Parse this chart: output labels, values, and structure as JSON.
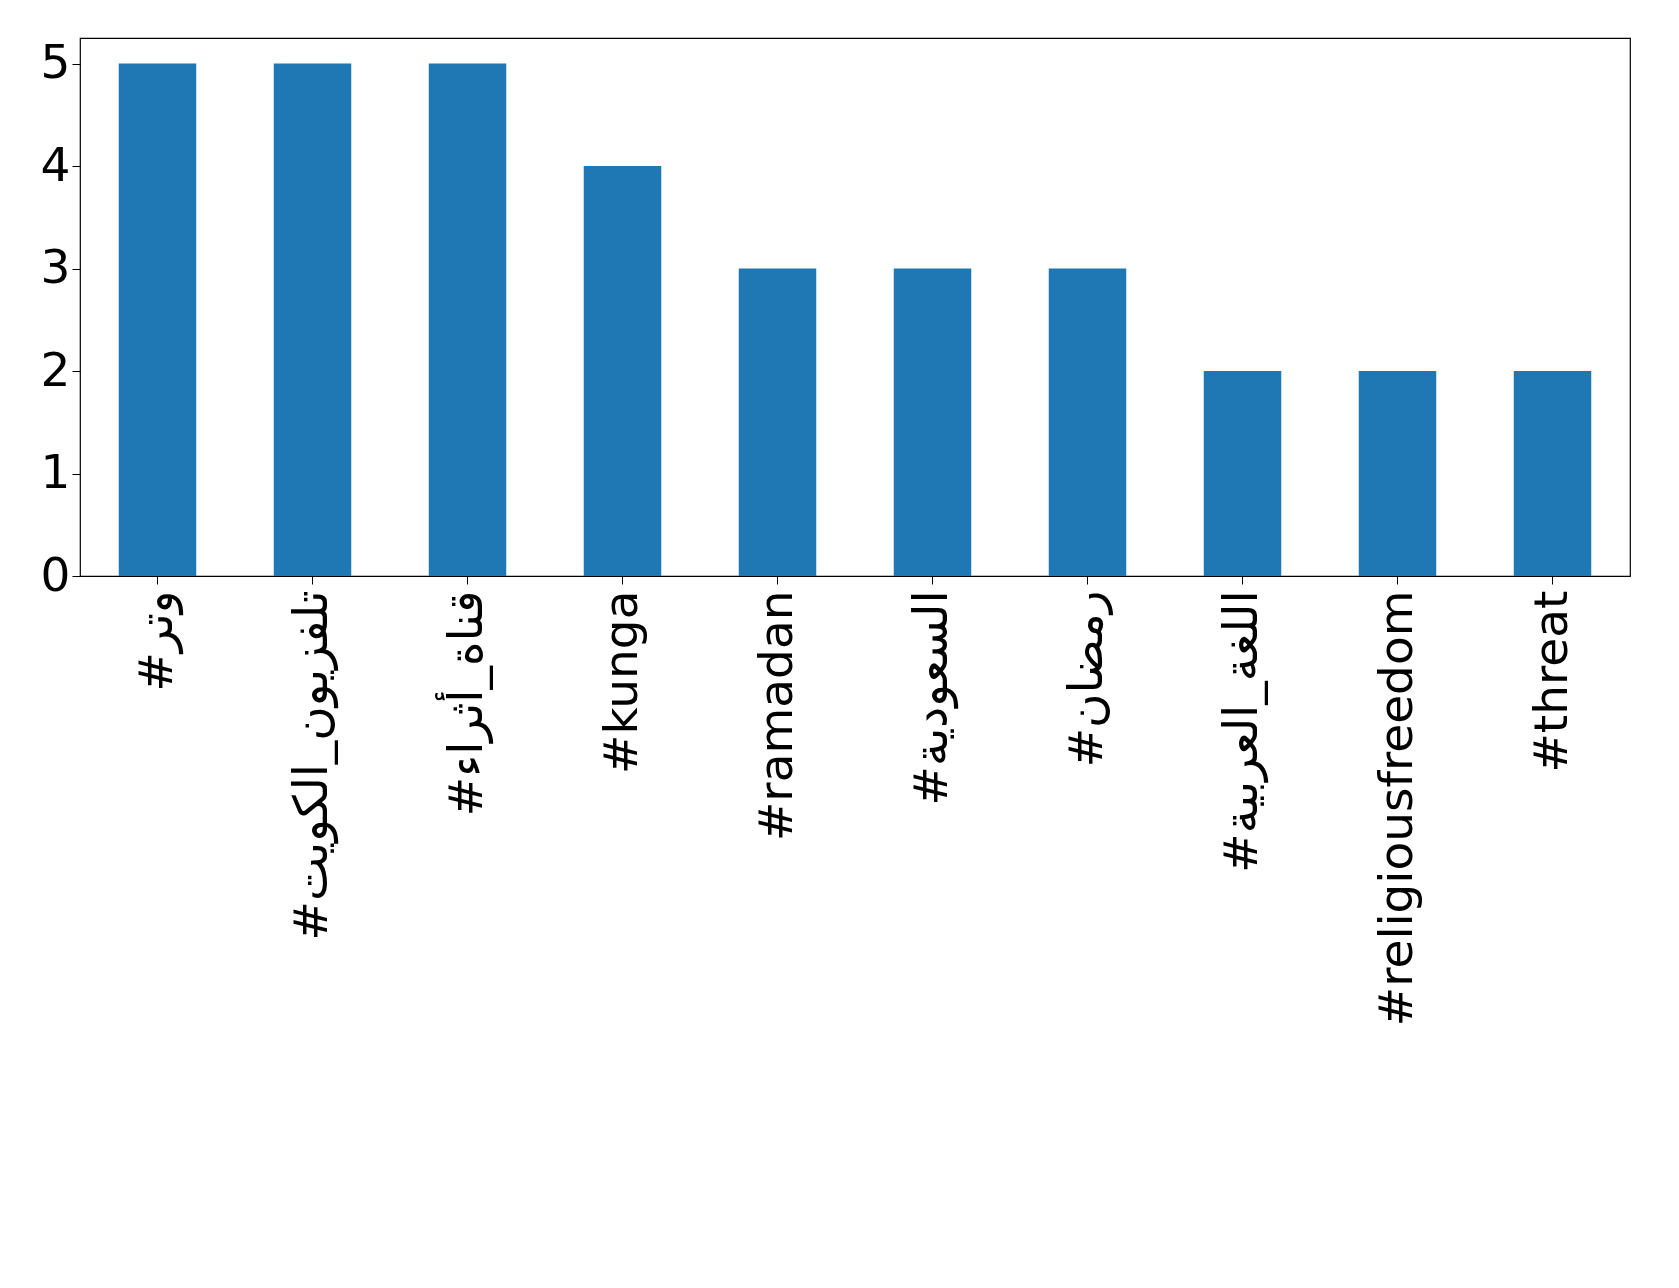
{
  "chart_data": {
    "type": "bar",
    "categories": [
      "#وتر",
      "#تلفزيون_الكويت",
      "#قناة_أثراء",
      "#kunga",
      "#ramadan",
      "#السعودية",
      "#رمضان",
      "#اللغة_العربية",
      "#religiousfreedom",
      "#threat"
    ],
    "values": [
      5,
      5,
      5,
      4,
      3,
      3,
      3,
      2,
      2,
      2
    ],
    "color": "#1f77b4",
    "ylim": [
      0,
      5.25
    ],
    "yticks": [
      0,
      1,
      2,
      3,
      4,
      5
    ],
    "grid": false
  }
}
